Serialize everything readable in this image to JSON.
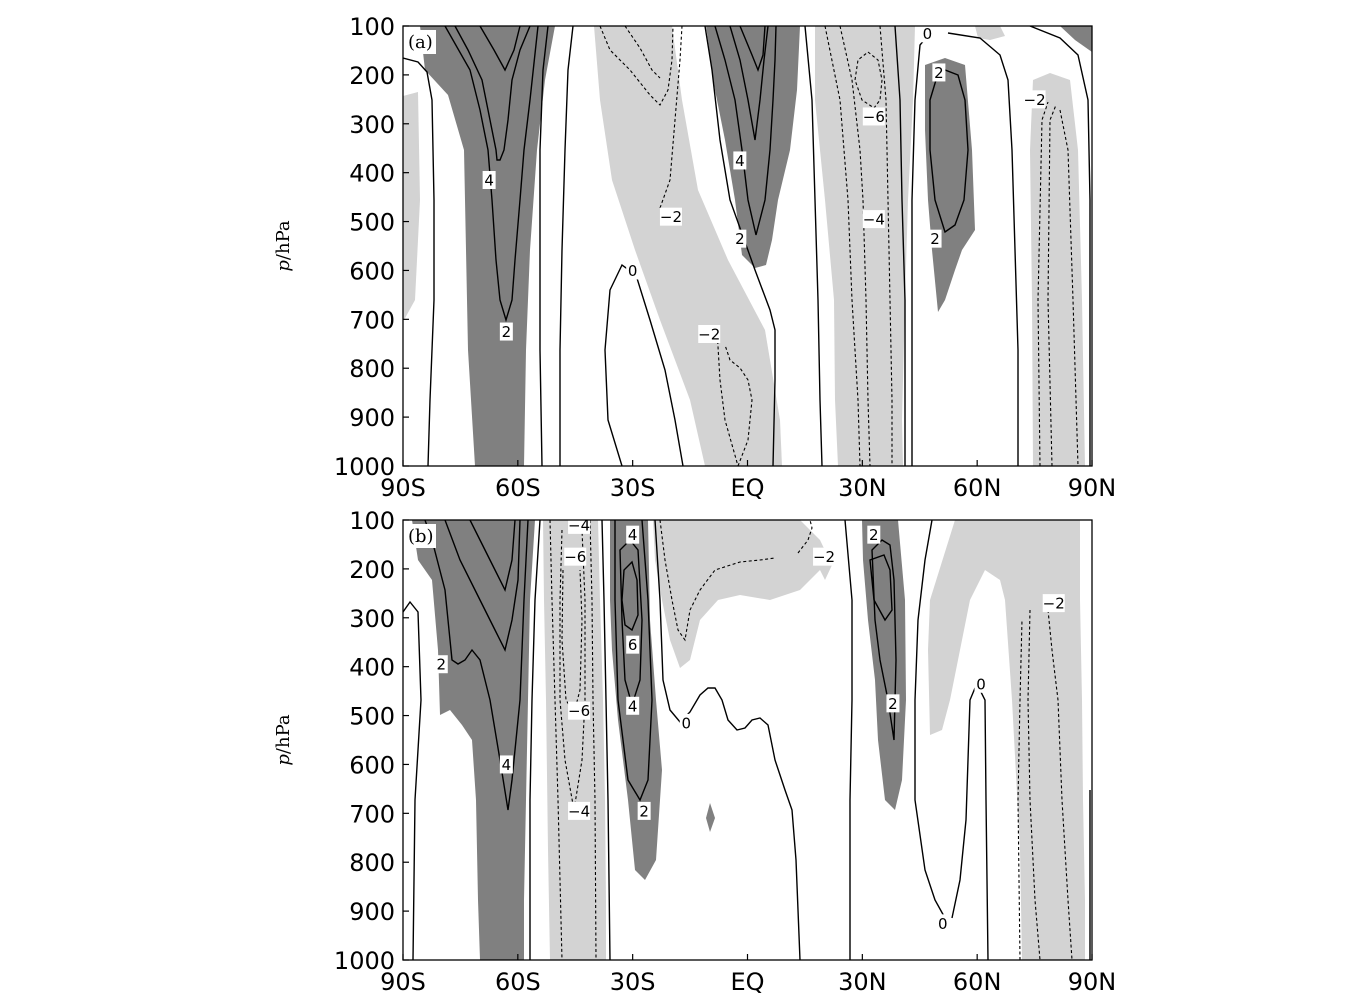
{
  "colors": {
    "positive_shade": "#808080",
    "negative_shade": "#d3d3d3",
    "line": "#000000",
    "background": "#ffffff"
  },
  "ylabel": {
    "italic": "p",
    "rest": "/hPa"
  },
  "chart_data": [
    {
      "type": "contour",
      "panel_label": "(a)",
      "xlabel": "",
      "ylabel": "p/hPa",
      "x_ticks": [
        "90S",
        "60S",
        "30S",
        "EQ",
        "30N",
        "60N",
        "90N"
      ],
      "y_ticks": [
        "100",
        "200",
        "300",
        "400",
        "500",
        "600",
        "700",
        "800",
        "900",
        "1000"
      ],
      "xlim": [
        -90,
        90
      ],
      "ylim": [
        1000,
        100
      ],
      "y_inverted": true,
      "contour_interval": 2,
      "shading": "dark grey >= 2, light grey <= -2",
      "contour_labels": [
        {
          "text": "4",
          "lat": -67.5,
          "p": 415
        },
        {
          "text": "2",
          "lat": -63,
          "p": 725
        },
        {
          "text": "0",
          "lat": -30,
          "p": 600
        },
        {
          "text": "-2",
          "lat": -20,
          "p": 490
        },
        {
          "text": "-2",
          "lat": -10,
          "p": 730
        },
        {
          "text": "4",
          "lat": -2,
          "p": 375
        },
        {
          "text": "2",
          "lat": -2,
          "p": 535
        },
        {
          "text": "-6",
          "lat": 33,
          "p": 285
        },
        {
          "text": "-4",
          "lat": 33,
          "p": 495
        },
        {
          "text": "0",
          "lat": 47,
          "p": 115
        },
        {
          "text": "2",
          "lat": 50,
          "p": 195
        },
        {
          "text": "2",
          "lat": 49,
          "p": 535
        },
        {
          "text": "-2",
          "lat": 75,
          "p": 250
        }
      ]
    },
    {
      "type": "contour",
      "panel_label": "(b)",
      "xlabel": "",
      "ylabel": "p/hPa",
      "x_ticks": [
        "90S",
        "60S",
        "30S",
        "EQ",
        "30N",
        "60N",
        "90N"
      ],
      "y_ticks": [
        "100",
        "200",
        "300",
        "400",
        "500",
        "600",
        "700",
        "800",
        "900",
        "1000"
      ],
      "xlim": [
        -90,
        90
      ],
      "ylim": [
        1000,
        100
      ],
      "y_inverted": true,
      "contour_interval": 2,
      "shading": "dark grey >= 2, light grey <= -2",
      "contour_labels": [
        {
          "text": "-4",
          "lat": -44,
          "p": 110
        },
        {
          "text": "-6",
          "lat": -45,
          "p": 175
        },
        {
          "text": "4",
          "lat": -30,
          "p": 130
        },
        {
          "text": "2",
          "lat": 33,
          "p": 130
        },
        {
          "text": "-2",
          "lat": 20,
          "p": 175
        },
        {
          "text": "-2",
          "lat": 80,
          "p": 270
        },
        {
          "text": "2",
          "lat": -80,
          "p": 395
        },
        {
          "text": "6",
          "lat": -30,
          "p": 355
        },
        {
          "text": "0",
          "lat": 61,
          "p": 435
        },
        {
          "text": "-6",
          "lat": -44,
          "p": 490
        },
        {
          "text": "4",
          "lat": -30,
          "p": 480
        },
        {
          "text": "0",
          "lat": -16,
          "p": 515
        },
        {
          "text": "2",
          "lat": 38,
          "p": 475
        },
        {
          "text": "4",
          "lat": -63,
          "p": 600
        },
        {
          "text": "-4",
          "lat": -44,
          "p": 695
        },
        {
          "text": "2",
          "lat": -27,
          "p": 695
        },
        {
          "text": "0",
          "lat": 51,
          "p": 925
        }
      ]
    }
  ]
}
